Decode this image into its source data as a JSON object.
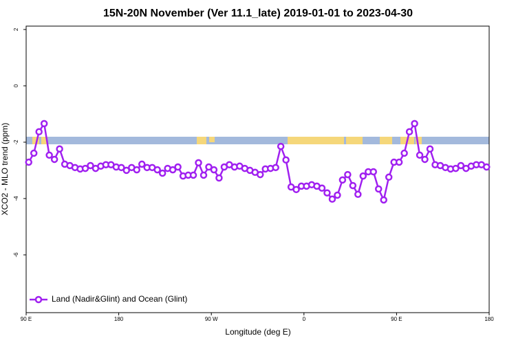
{
  "chart_data": {
    "type": "line",
    "title": "15N-20N November (Ver 11.1_late)   2019-01-01 to 2023-04-30",
    "x_label": "Longitude (deg E)",
    "y_label": "XCO2 - MLO trend (ppm)",
    "xlim": [
      90,
      540
    ],
    "xticks": [
      {
        "value": 90,
        "label": "90 E"
      },
      {
        "value": 180,
        "label": "180"
      },
      {
        "value": 270,
        "label": "90 W"
      },
      {
        "value": 360,
        "label": "0"
      },
      {
        "value": 450,
        "label": "90 E"
      },
      {
        "value": 540,
        "label": "180"
      }
    ],
    "ylim": [
      -8.05,
      2.12
    ],
    "yticks": [
      2,
      0,
      -2,
      -4,
      -6
    ],
    "legend": "bottom-left",
    "x": [
      92.5,
      97.5,
      102.5,
      107.5,
      112.5,
      117.5,
      122.5,
      127.5,
      132.5,
      137.5,
      142.5,
      147.5,
      152.5,
      157.5,
      162.5,
      167.5,
      172.5,
      177.5,
      182.5,
      187.5,
      192.5,
      197.5,
      202.5,
      207.5,
      212.5,
      217.5,
      222.5,
      227.5,
      232.5,
      237.5,
      242.5,
      247.5,
      252.5,
      257.5,
      262.5,
      267.5,
      272.5,
      277.5,
      282.5,
      287.5,
      292.5,
      297.5,
      302.5,
      307.5,
      312.5,
      317.5,
      322.5,
      327.5,
      332.5,
      337.5,
      342.5,
      347.5,
      352.5,
      357.5,
      362.5,
      367.5,
      372.5,
      377.5,
      382.5,
      387.5,
      392.5,
      397.5,
      402.5,
      407.5,
      412.5,
      417.5,
      422.5,
      427.5,
      432.5,
      437.5,
      442.5,
      447.5,
      452.5,
      457.5,
      462.5,
      467.5,
      472.5,
      477.5,
      482.5,
      487.5,
      492.5,
      497.5,
      502.5,
      507.5,
      512.5,
      517.5,
      522.5,
      527.5,
      532.5,
      537.5
    ],
    "series": [
      {
        "name": "Land (Nadir&Glint) and Ocean (Glint)",
        "color": "#a020f0",
        "values": [
          -2.71,
          -2.39,
          -1.63,
          -1.34,
          -2.46,
          -2.61,
          -2.24,
          -2.78,
          -2.83,
          -2.9,
          -2.95,
          -2.93,
          -2.83,
          -2.93,
          -2.85,
          -2.8,
          -2.8,
          -2.88,
          -2.9,
          -3.0,
          -2.9,
          -2.98,
          -2.78,
          -2.9,
          -2.9,
          -2.98,
          -3.1,
          -2.93,
          -2.98,
          -2.88,
          -3.2,
          -3.17,
          -3.17,
          -2.73,
          -3.17,
          -2.88,
          -2.98,
          -3.27,
          -2.88,
          -2.8,
          -2.88,
          -2.85,
          -2.93,
          -3.0,
          -3.07,
          -3.15,
          -2.95,
          -2.93,
          -2.9,
          -2.15,
          -2.63,
          -3.59,
          -3.68,
          -3.56,
          -3.56,
          -3.51,
          -3.56,
          -3.63,
          -3.8,
          -4.02,
          -3.88,
          -3.34,
          -3.15,
          -3.54,
          -3.85,
          -3.2,
          -3.05,
          -3.05,
          -3.66,
          -4.05,
          -3.24,
          -2.71,
          -2.71,
          -2.39,
          -1.63,
          -1.34,
          -2.46,
          -2.61,
          -2.24,
          -2.8,
          -2.83,
          -2.9,
          -2.95,
          -2.93,
          -2.83,
          -2.93,
          -2.85,
          -2.8,
          -2.8,
          -2.88
        ]
      }
    ]
  }
}
